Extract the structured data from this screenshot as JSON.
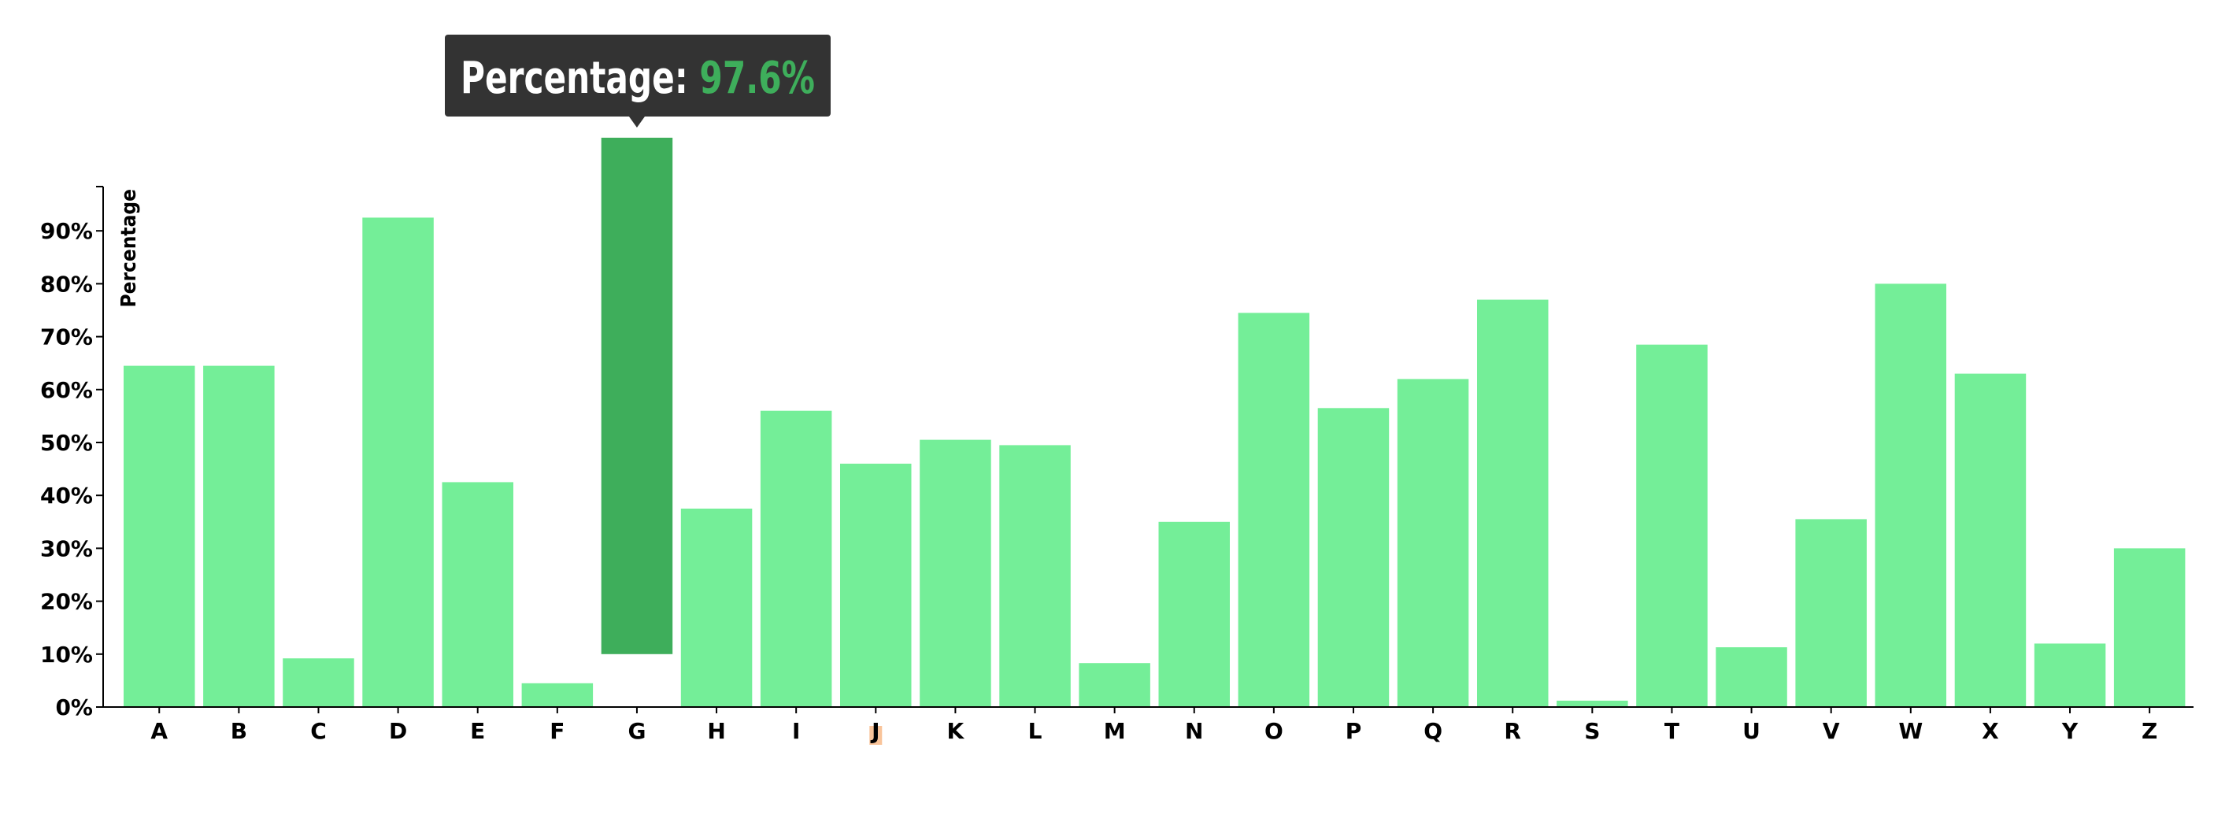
{
  "chart_data": {
    "type": "bar",
    "ylabel": "Percentage",
    "ylim": [
      0,
      100
    ],
    "y_ticks": [
      "0%",
      "10%",
      "20%",
      "30%",
      "40%",
      "50%",
      "60%",
      "70%",
      "80%",
      "90%"
    ],
    "grid": false,
    "categories": [
      "A",
      "B",
      "C",
      "D",
      "E",
      "F",
      "G",
      "H",
      "I",
      "J",
      "K",
      "L",
      "M",
      "N",
      "O",
      "P",
      "Q",
      "R",
      "S",
      "T",
      "U",
      "V",
      "W",
      "X",
      "Y",
      "Z"
    ],
    "values": [
      64.5,
      64.5,
      9.2,
      92.5,
      42.5,
      4.5,
      97.6,
      37.5,
      56.0,
      46.0,
      50.5,
      49.5,
      8.3,
      35.0,
      74.5,
      56.5,
      62.0,
      77.0,
      1.2,
      68.5,
      11.3,
      35.5,
      80.0,
      63.0,
      12.0,
      30.0
    ],
    "highlighted_index": 6,
    "highlighted_offset": 10,
    "tooltip": {
      "label": "Percentage: ",
      "value": "97.6%"
    },
    "colors": {
      "bar": "#74ee98",
      "bar_highlight": "#3eae5b",
      "tooltip_bg": "#333333",
      "tooltip_label": "#ffffff",
      "tooltip_value": "#3eae5b",
      "axis": "#000000",
      "tick_highlight_bg": "#f9c49a"
    }
  }
}
